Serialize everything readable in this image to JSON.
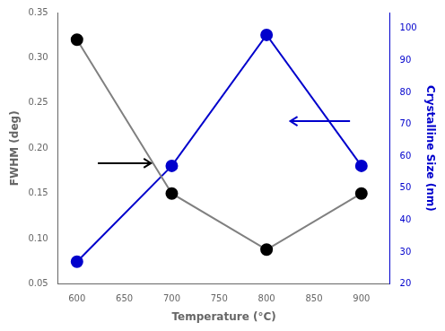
{
  "chart_data": {
    "type": "line",
    "xlabel": "Temperature (°C)",
    "ylabel": "FWHM (deg)",
    "y2label": "Crystalline Size (nm)",
    "x": [
      600,
      700,
      800,
      900
    ],
    "series": [
      {
        "values": [
          0.32,
          0.15,
          0.088,
          0.15
        ],
        "color": "#808080",
        "colors": [
          "black",
          "black",
          "black",
          "black"
        ],
        "marker": "circle"
      },
      {
        "values": [
          27,
          57,
          98,
          57
        ],
        "color": "#0000cc",
        "marker": "circle",
        "axis": "y2"
      }
    ],
    "xlim": [
      580,
      930
    ],
    "xticks": [
      600,
      650,
      700,
      750,
      800,
      850,
      900
    ],
    "ylim": [
      0.05,
      0.35
    ],
    "yticks": [
      0.05,
      {
        "value": 0.1,
        "label": "0.10"
      },
      0.15,
      {
        "value": 0.2,
        "label": "0.20"
      },
      0.25,
      {
        "value": 0.3,
        "label": "0.30"
      },
      0.35
    ],
    "y2lim": [
      20,
      105
    ],
    "y2ticks": [
      20,
      30,
      40,
      50,
      60,
      70,
      80,
      90,
      100
    ],
    "grid": false
  }
}
